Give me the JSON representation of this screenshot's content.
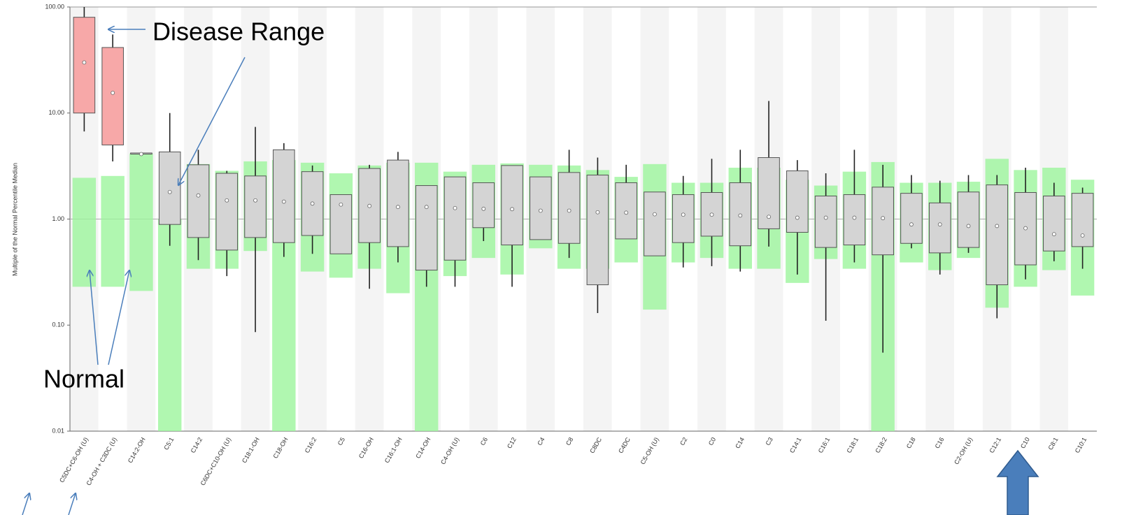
{
  "chart_data": {
    "type": "box",
    "y_label": "Multiple of the Normal Percentile Median",
    "annotations": [
      "Disease Range",
      "Normal"
    ],
    "log_scale": true,
    "ylim": [
      0.01,
      100
    ],
    "yticks": [
      0.01,
      {
        "value": 0.1,
        "label": "0.10"
      },
      {
        "value": 1,
        "label": "1.00"
      },
      {
        "value": 10,
        "label": "10.00"
      },
      {
        "value": 100,
        "label": "100.00"
      }
    ],
    "normal_color": "#9cf59c",
    "categories": [
      "C5DC+C6-OH (U)",
      "C4-OH + C3DC (U)",
      "C14:2-OH",
      "C5:1",
      "C14:2",
      "C6DC+C10-OH (U)",
      "C18:1-OH",
      "C18-OH",
      "C16:2",
      "C5",
      "C16-OH",
      "C16:1-OH",
      "C14-OH",
      "C4-OH (U)",
      "C6",
      "C12",
      "C4",
      "C8",
      "C8DC",
      "C4DC",
      "C5-OH (U)",
      "C2",
      "C0",
      "C14",
      "C3",
      "C14:1",
      "C16:1",
      "C18:1",
      "C18:2",
      "C18",
      "C16",
      "C2-OH (U)",
      "C12:1",
      "C10",
      "C8:1",
      "C10:1"
    ],
    "box_colors": [
      "#f7a8a8",
      "#f7a8a8",
      "#d4d4d4",
      "#d4d4d4",
      "#d4d4d4",
      "#d4d4d4",
      "#d4d4d4",
      "#d4d4d4",
      "#d4d4d4",
      "#d4d4d4",
      "#d4d4d4",
      "#d4d4d4",
      "#d4d4d4",
      "#d4d4d4",
      "#d4d4d4",
      "#d4d4d4",
      "#d4d4d4",
      "#d4d4d4",
      "#d4d4d4",
      "#d4d4d4",
      "#d4d4d4",
      "#d4d4d4",
      "#d4d4d4",
      "#d4d4d4",
      "#d4d4d4",
      "#d4d4d4",
      "#d4d4d4",
      "#d4d4d4",
      "#d4d4d4",
      "#d4d4d4",
      "#d4d4d4",
      "#d4d4d4",
      "#d4d4d4",
      "#d4d4d4",
      "#d4d4d4",
      "#d4d4d4"
    ],
    "normal_low": [
      0.23,
      0.23,
      0.21,
      0.01,
      0.34,
      0.34,
      0.5,
      0.01,
      0.32,
      0.28,
      0.34,
      0.2,
      0.01,
      0.29,
      0.43,
      0.3,
      0.53,
      0.34,
      0.34,
      0.39,
      0.14,
      0.39,
      0.43,
      0.34,
      0.34,
      0.25,
      0.42,
      0.34,
      0.01,
      0.39,
      0.33,
      0.43,
      0.146,
      0.23,
      0.33,
      0.19
    ],
    "normal_high": [
      2.45,
      2.55,
      4.15,
      1.0,
      3.3,
      2.85,
      3.5,
      3.6,
      3.4,
      2.7,
      3.2,
      3.4,
      3.4,
      2.8,
      3.25,
      3.35,
      3.25,
      3.2,
      2.9,
      2.5,
      3.3,
      2.2,
      2.2,
      3.05,
      3.05,
      2.35,
      2.07,
      2.8,
      3.45,
      2.2,
      2.2,
      2.25,
      3.7,
      2.9,
      3.05,
      2.35
    ],
    "box_low": [
      10,
      5.0,
      4.1,
      0.89,
      0.67,
      0.51,
      0.67,
      0.6,
      0.7,
      0.47,
      0.6,
      0.55,
      0.33,
      0.41,
      0.83,
      0.57,
      0.64,
      0.59,
      0.24,
      0.65,
      0.45,
      0.6,
      0.69,
      0.56,
      0.81,
      0.75,
      0.54,
      0.57,
      0.46,
      0.59,
      0.48,
      0.54,
      0.24,
      0.37,
      0.5,
      0.55
    ],
    "box_high": [
      80,
      41.5,
      4.2,
      4.3,
      3.25,
      2.7,
      2.55,
      4.5,
      2.8,
      1.7,
      3.0,
      3.6,
      2.07,
      2.5,
      2.2,
      3.2,
      2.5,
      2.75,
      2.6,
      2.2,
      1.8,
      1.7,
      1.78,
      2.2,
      3.8,
      2.85,
      1.65,
      1.7,
      2.0,
      1.75,
      1.42,
      1.8,
      2.1,
      1.78,
      1.65,
      1.75
    ],
    "whisker_low": [
      6.7,
      3.5,
      4.1,
      0.56,
      0.41,
      0.29,
      0.086,
      0.44,
      0.47,
      0.47,
      0.22,
      0.39,
      0.23,
      0.23,
      0.62,
      0.23,
      0.64,
      0.43,
      0.13,
      0.65,
      0.45,
      0.35,
      0.36,
      0.32,
      0.55,
      0.3,
      0.11,
      0.39,
      0.055,
      0.53,
      0.3,
      0.48,
      0.116,
      0.27,
      0.4,
      0.34
    ],
    "whisker_high": [
      100,
      55,
      4.2,
      10,
      4.5,
      2.85,
      7.4,
      5.2,
      3.2,
      1.7,
      3.25,
      4.3,
      2.07,
      2.5,
      2.2,
      3.2,
      2.5,
      4.5,
      3.8,
      3.25,
      1.8,
      2.55,
      3.7,
      4.5,
      13,
      3.6,
      2.7,
      4.5,
      3.25,
      2.6,
      2.3,
      2.6,
      2.6,
      3.05,
      2.2,
      1.98
    ],
    "median": [
      30,
      15.5,
      4.1,
      1.8,
      1.67,
      1.5,
      1.5,
      1.46,
      1.4,
      1.37,
      1.33,
      1.3,
      1.3,
      1.27,
      1.25,
      1.24,
      1.2,
      1.2,
      1.16,
      1.15,
      1.11,
      1.1,
      1.1,
      1.08,
      1.05,
      1.03,
      1.03,
      1.03,
      1.02,
      0.89,
      0.89,
      0.86,
      0.86,
      0.82,
      0.72,
      0.7
    ]
  }
}
